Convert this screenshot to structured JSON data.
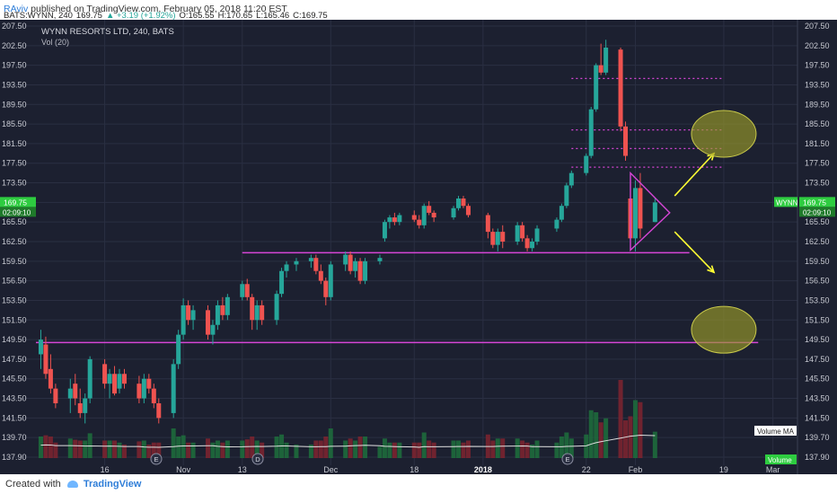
{
  "header": {
    "author": "RAviv",
    "published_text": "published on TradingView.com, February 05, 2018 11:20 EST",
    "symbol_line": "BATS:WYNN, 240",
    "last": "169.75",
    "change": "+3.19 (+1.92%)",
    "open": "O:165.55",
    "high": "H:170.65",
    "low": "L:165.46",
    "close": "C:169.75"
  },
  "chart_title": "WYNN RESORTS LTD, 240, BATS",
  "vol_label": "Vol (20)",
  "footer": {
    "created_with": "Created with",
    "brand": "TradingView"
  },
  "badges": {
    "price_symbol": "WYNN",
    "price_value": "169.75",
    "countdown_left": "02:09:10",
    "countdown_right": "02:09:10",
    "volume_ma": "Volume MA",
    "volume": "Volume"
  },
  "event_markers": [
    "E",
    "D",
    "E",
    "E"
  ],
  "colors": {
    "background": "#1c2030",
    "grid": "#2a2f42",
    "up_candle": "#26a69a",
    "down_candle": "#ef5350",
    "support_line": "#d645d6",
    "arrow": "#ffff33",
    "target_ellipse": "#9a9a2a",
    "price_badge": "#2ecc40"
  },
  "chart_data": {
    "type": "candlestick",
    "title": "WYNN RESORTS LTD, 240, BATS",
    "ylim": [
      137.9,
      207.5
    ],
    "y_ticks": [
      "207.50",
      "202.50",
      "197.50",
      "193.50",
      "189.50",
      "185.50",
      "181.50",
      "177.50",
      "173.50",
      "169.75",
      "165.50",
      "162.50",
      "159.50",
      "156.50",
      "153.50",
      "151.50",
      "149.50",
      "147.50",
      "145.50",
      "143.50",
      "141.50",
      "139.70",
      "137.90"
    ],
    "y_tick_values": [
      207.5,
      202.5,
      197.5,
      193.5,
      189.5,
      185.5,
      181.5,
      177.5,
      173.5,
      169.75,
      165.5,
      162.5,
      159.5,
      156.5,
      153.5,
      151.5,
      149.5,
      147.5,
      145.5,
      143.5,
      141.5,
      139.7,
      137.9
    ],
    "x_ticks": [
      "16",
      "Nov",
      "13",
      "Dec",
      "18",
      "2018",
      "22",
      "Feb",
      "19",
      "Mar"
    ],
    "x_tick_dates": [
      "2017-10-16",
      "2017-11-01",
      "2017-11-13",
      "2017-12-01",
      "2017-12-18",
      "2018-01-01",
      "2018-01-22",
      "2018-02-01",
      "2018-02-19",
      "2018-03-01"
    ],
    "grid": true,
    "annotations": {
      "horizontal_lines": [
        {
          "y": 149.2,
          "style": "solid",
          "from": "2017-10-02",
          "to": "2018-02-26"
        },
        {
          "y": 160.8,
          "style": "solid",
          "from": "2017-11-13",
          "to": "2018-02-12"
        },
        {
          "y": 176.7,
          "style": "dotted",
          "from": "2018-01-19",
          "to": "2018-02-19"
        },
        {
          "y": 180.5,
          "style": "dotted",
          "from": "2018-01-19",
          "to": "2018-02-19"
        },
        {
          "y": 184.3,
          "style": "dotted",
          "from": "2018-01-19",
          "to": "2018-02-19"
        },
        {
          "y": 194.8,
          "style": "dotted",
          "from": "2018-01-19",
          "to": "2018-02-19"
        }
      ],
      "triangle": {
        "apex_date": "2018-02-08",
        "apex_price": 167.5,
        "top_price": 175.5,
        "bottom_price": 161.2,
        "start_date": "2018-01-31"
      },
      "arrows": [
        {
          "from": [
            "2018-02-09",
            171.0
          ],
          "to": [
            "2018-02-17",
            179.5
          ],
          "direction": "up"
        },
        {
          "from": [
            "2018-02-09",
            164.0
          ],
          "to": [
            "2018-02-17",
            157.8
          ],
          "direction": "down"
        }
      ],
      "ellipses": [
        {
          "center_date": "2018-02-19",
          "center_price": 183.5,
          "label": "upper-target"
        },
        {
          "center_date": "2018-02-19",
          "center_price": 150.5,
          "label": "lower-target"
        }
      ]
    },
    "candles": [
      {
        "t": "2017-10-03",
        "o": 148.0,
        "h": 150.5,
        "l": 146.5,
        "c": 149.5
      },
      {
        "t": "2017-10-04",
        "o": 149.0,
        "h": 149.8,
        "l": 145.5,
        "c": 146.0
      },
      {
        "t": "2017-10-05",
        "o": 146.5,
        "h": 148.0,
        "l": 144.0,
        "c": 144.5
      },
      {
        "t": "2017-10-06",
        "o": 144.5,
        "h": 145.0,
        "l": 142.5,
        "c": 143.0
      },
      {
        "t": "2017-10-09",
        "o": 143.5,
        "h": 145.5,
        "l": 142.0,
        "c": 144.5
      },
      {
        "t": "2017-10-10",
        "o": 145.0,
        "h": 146.0,
        "l": 142.8,
        "c": 143.5
      },
      {
        "t": "2017-10-11",
        "o": 143.0,
        "h": 144.5,
        "l": 141.5,
        "c": 142.0
      },
      {
        "t": "2017-10-12",
        "o": 142.0,
        "h": 144.0,
        "l": 141.0,
        "c": 143.5
      },
      {
        "t": "2017-10-13",
        "o": 143.5,
        "h": 147.8,
        "l": 143.0,
        "c": 147.5
      },
      {
        "t": "2017-10-16",
        "o": 147.0,
        "h": 147.5,
        "l": 144.5,
        "c": 145.0
      },
      {
        "t": "2017-10-17",
        "o": 145.0,
        "h": 146.5,
        "l": 143.5,
        "c": 146.0
      },
      {
        "t": "2017-10-18",
        "o": 146.0,
        "h": 146.8,
        "l": 143.8,
        "c": 144.0
      },
      {
        "t": "2017-10-19",
        "o": 144.5,
        "h": 146.5,
        "l": 144.0,
        "c": 146.0
      },
      {
        "t": "2017-10-20",
        "o": 146.0,
        "h": 146.5,
        "l": 144.5,
        "c": 145.0
      },
      {
        "t": "2017-10-23",
        "o": 145.0,
        "h": 145.8,
        "l": 143.0,
        "c": 143.5
      },
      {
        "t": "2017-10-24",
        "o": 143.5,
        "h": 146.0,
        "l": 143.0,
        "c": 145.5
      },
      {
        "t": "2017-10-25",
        "o": 145.5,
        "h": 146.0,
        "l": 144.0,
        "c": 144.5
      },
      {
        "t": "2017-10-26",
        "o": 144.5,
        "h": 145.0,
        "l": 142.5,
        "c": 143.0
      },
      {
        "t": "2017-10-27",
        "o": 143.0,
        "h": 143.5,
        "l": 141.0,
        "c": 141.5
      },
      {
        "t": "2017-10-30",
        "o": 142.0,
        "h": 147.5,
        "l": 141.5,
        "c": 147.0
      },
      {
        "t": "2017-10-31",
        "o": 147.0,
        "h": 150.5,
        "l": 146.5,
        "c": 150.0
      },
      {
        "t": "2017-11-01",
        "o": 150.0,
        "h": 153.8,
        "l": 149.5,
        "c": 153.0
      },
      {
        "t": "2017-11-02",
        "o": 153.0,
        "h": 153.5,
        "l": 151.0,
        "c": 151.5
      },
      {
        "t": "2017-11-03",
        "o": 151.5,
        "h": 153.0,
        "l": 150.5,
        "c": 152.5
      },
      {
        "t": "2017-11-06",
        "o": 152.5,
        "h": 153.0,
        "l": 149.5,
        "c": 150.0
      },
      {
        "t": "2017-11-07",
        "o": 150.0,
        "h": 151.5,
        "l": 149.0,
        "c": 151.0
      },
      {
        "t": "2017-11-08",
        "o": 151.0,
        "h": 153.5,
        "l": 150.5,
        "c": 153.0
      },
      {
        "t": "2017-11-09",
        "o": 153.0,
        "h": 154.0,
        "l": 151.5,
        "c": 152.0
      },
      {
        "t": "2017-11-10",
        "o": 152.0,
        "h": 154.5,
        "l": 151.5,
        "c": 154.0
      },
      {
        "t": "2017-11-13",
        "o": 154.0,
        "h": 156.5,
        "l": 153.5,
        "c": 156.0
      },
      {
        "t": "2017-11-14",
        "o": 156.0,
        "h": 156.8,
        "l": 153.5,
        "c": 154.0
      },
      {
        "t": "2017-11-15",
        "o": 154.0,
        "h": 154.5,
        "l": 150.5,
        "c": 151.5
      },
      {
        "t": "2017-11-16",
        "o": 151.5,
        "h": 153.5,
        "l": 150.5,
        "c": 153.0
      },
      {
        "t": "2017-11-17",
        "o": 153.0,
        "h": 153.5,
        "l": 151.0,
        "c": 151.5
      },
      {
        "t": "2017-11-20",
        "o": 151.5,
        "h": 155.0,
        "l": 151.0,
        "c": 154.5
      },
      {
        "t": "2017-11-21",
        "o": 154.5,
        "h": 158.5,
        "l": 154.0,
        "c": 158.0
      },
      {
        "t": "2017-11-22",
        "o": 158.0,
        "h": 159.5,
        "l": 157.0,
        "c": 159.0
      },
      {
        "t": "2017-11-24",
        "o": 159.0,
        "h": 160.0,
        "l": 158.0,
        "c": 159.5
      },
      {
        "t": "2017-11-27",
        "o": 159.5,
        "h": 160.5,
        "l": 158.5,
        "c": 160.0
      },
      {
        "t": "2017-11-28",
        "o": 160.0,
        "h": 160.5,
        "l": 157.5,
        "c": 158.0
      },
      {
        "t": "2017-11-29",
        "o": 158.0,
        "h": 159.0,
        "l": 156.0,
        "c": 156.5
      },
      {
        "t": "2017-11-30",
        "o": 156.5,
        "h": 157.0,
        "l": 153.0,
        "c": 154.0
      },
      {
        "t": "2017-12-01",
        "o": 154.0,
        "h": 159.5,
        "l": 153.5,
        "c": 159.0
      },
      {
        "t": "2017-12-04",
        "o": 159.0,
        "h": 161.0,
        "l": 158.0,
        "c": 160.5
      },
      {
        "t": "2017-12-05",
        "o": 160.5,
        "h": 161.0,
        "l": 157.5,
        "c": 158.0
      },
      {
        "t": "2017-12-06",
        "o": 158.0,
        "h": 160.0,
        "l": 157.0,
        "c": 159.5
      },
      {
        "t": "2017-12-07",
        "o": 159.5,
        "h": 160.0,
        "l": 156.0,
        "c": 156.5
      },
      {
        "t": "2017-12-08",
        "o": 156.5,
        "h": 160.0,
        "l": 156.0,
        "c": 159.5
      },
      {
        "t": "2017-12-11",
        "o": 159.5,
        "h": 160.5,
        "l": 159.0,
        "c": 160.0
      },
      {
        "t": "2017-12-12",
        "o": 163.0,
        "h": 166.0,
        "l": 162.5,
        "c": 165.5
      },
      {
        "t": "2017-12-13",
        "o": 165.5,
        "h": 167.0,
        "l": 164.5,
        "c": 166.5
      },
      {
        "t": "2017-12-14",
        "o": 166.5,
        "h": 167.5,
        "l": 165.0,
        "c": 165.5
      },
      {
        "t": "2017-12-15",
        "o": 165.5,
        "h": 167.5,
        "l": 165.0,
        "c": 167.0
      },
      {
        "t": "2017-12-18",
        "o": 167.0,
        "h": 168.0,
        "l": 165.5,
        "c": 166.0
      },
      {
        "t": "2017-12-19",
        "o": 166.0,
        "h": 167.0,
        "l": 164.5,
        "c": 165.0
      },
      {
        "t": "2017-12-20",
        "o": 165.0,
        "h": 169.5,
        "l": 164.5,
        "c": 169.0
      },
      {
        "t": "2017-12-21",
        "o": 169.0,
        "h": 170.0,
        "l": 167.0,
        "c": 167.5
      },
      {
        "t": "2017-12-22",
        "o": 167.5,
        "h": 168.0,
        "l": 165.5,
        "c": 166.5
      },
      {
        "t": "2017-12-26",
        "o": 166.5,
        "h": 169.0,
        "l": 166.0,
        "c": 168.5
      },
      {
        "t": "2017-12-27",
        "o": 168.5,
        "h": 171.0,
        "l": 168.0,
        "c": 170.5
      },
      {
        "t": "2017-12-28",
        "o": 170.5,
        "h": 171.0,
        "l": 168.5,
        "c": 169.0
      },
      {
        "t": "2017-12-29",
        "o": 169.0,
        "h": 169.5,
        "l": 166.5,
        "c": 167.0
      },
      {
        "t": "2018-01-02",
        "o": 167.0,
        "h": 167.5,
        "l": 163.0,
        "c": 164.0
      },
      {
        "t": "2018-01-03",
        "o": 164.0,
        "h": 164.5,
        "l": 161.5,
        "c": 162.0
      },
      {
        "t": "2018-01-04",
        "o": 162.0,
        "h": 164.5,
        "l": 161.0,
        "c": 164.0
      },
      {
        "t": "2018-01-05",
        "o": 164.0,
        "h": 165.0,
        "l": 161.5,
        "c": 162.5
      },
      {
        "t": "2018-01-08",
        "o": 162.5,
        "h": 165.5,
        "l": 162.0,
        "c": 165.0
      },
      {
        "t": "2018-01-09",
        "o": 165.0,
        "h": 165.5,
        "l": 162.5,
        "c": 163.0
      },
      {
        "t": "2018-01-10",
        "o": 163.0,
        "h": 163.5,
        "l": 161.0,
        "c": 161.5
      },
      {
        "t": "2018-01-11",
        "o": 161.5,
        "h": 163.0,
        "l": 161.0,
        "c": 162.5
      },
      {
        "t": "2018-01-12",
        "o": 162.5,
        "h": 165.0,
        "l": 162.0,
        "c": 164.5
      },
      {
        "t": "2018-01-16",
        "o": 164.5,
        "h": 166.5,
        "l": 164.0,
        "c": 166.0
      },
      {
        "t": "2018-01-17",
        "o": 166.0,
        "h": 169.5,
        "l": 165.5,
        "c": 169.0
      },
      {
        "t": "2018-01-18",
        "o": 169.0,
        "h": 173.5,
        "l": 168.5,
        "c": 173.0
      },
      {
        "t": "2018-01-19",
        "o": 173.0,
        "h": 176.0,
        "l": 172.5,
        "c": 175.5
      },
      {
        "t": "2018-01-22",
        "o": 175.5,
        "h": 179.5,
        "l": 175.0,
        "c": 179.0
      },
      {
        "t": "2018-01-23",
        "o": 179.0,
        "h": 189.0,
        "l": 178.5,
        "c": 188.5
      },
      {
        "t": "2018-01-24",
        "o": 188.5,
        "h": 198.0,
        "l": 188.0,
        "c": 197.5
      },
      {
        "t": "2018-01-25",
        "o": 197.5,
        "h": 203.0,
        "l": 195.5,
        "c": 196.0
      },
      {
        "t": "2018-01-26",
        "o": 196.0,
        "h": 204.0,
        "l": 195.5,
        "c": 202.0
      },
      {
        "t": "2018-01-29",
        "o": 201.5,
        "h": 202.0,
        "l": 184.0,
        "c": 185.0
      },
      {
        "t": "2018-01-30",
        "o": 185.0,
        "h": 186.0,
        "l": 178.0,
        "c": 179.0
      },
      {
        "t": "2018-01-31",
        "o": 170.5,
        "h": 171.0,
        "l": 162.0,
        "c": 163.0
      },
      {
        "t": "2018-02-01",
        "o": 163.0,
        "h": 174.0,
        "l": 161.0,
        "c": 172.5
      },
      {
        "t": "2018-02-02",
        "o": 172.5,
        "h": 175.5,
        "l": 163.0,
        "c": 164.5
      },
      {
        "t": "2018-02-05",
        "o": 165.5,
        "h": 170.65,
        "l": 165.46,
        "c": 169.75
      }
    ],
    "volume_series": {
      "name": "Vol (20)",
      "ma_label": "Volume MA"
    }
  }
}
